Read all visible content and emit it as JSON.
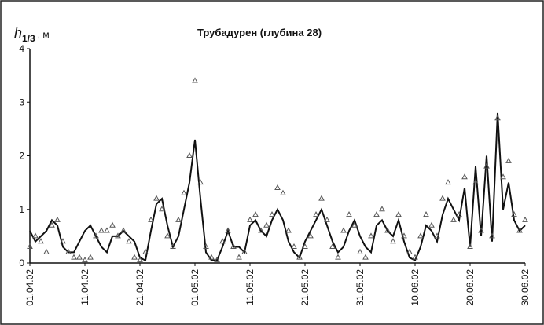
{
  "chart_data": {
    "type": "line",
    "title": "Трубадурен (глубина 28)",
    "y_label": {
      "main": "h",
      "sub": "1/3",
      "unit": ", м"
    },
    "x": [
      "01.04.02",
      "02.04.02",
      "03.04.02",
      "04.04.02",
      "05.04.02",
      "06.04.02",
      "07.04.02",
      "08.04.02",
      "09.04.02",
      "10.04.02",
      "11.04.02",
      "12.04.02",
      "13.04.02",
      "14.04.02",
      "15.04.02",
      "16.04.02",
      "17.04.02",
      "18.04.02",
      "19.04.02",
      "20.04.02",
      "21.04.02",
      "22.04.02",
      "23.04.02",
      "24.04.02",
      "25.04.02",
      "26.04.02",
      "27.04.02",
      "28.04.02",
      "29.04.02",
      "30.04.02",
      "01.05.02",
      "02.05.02",
      "03.05.02",
      "04.05.02",
      "05.05.02",
      "06.05.02",
      "07.05.02",
      "08.05.02",
      "09.05.02",
      "10.05.02",
      "11.05.02",
      "12.05.02",
      "13.05.02",
      "14.05.02",
      "15.05.02",
      "16.05.02",
      "17.05.02",
      "18.05.02",
      "19.05.02",
      "20.05.02",
      "21.05.02",
      "22.05.02",
      "23.05.02",
      "24.05.02",
      "25.05.02",
      "26.05.02",
      "27.05.02",
      "28.05.02",
      "29.05.02",
      "30.05.02",
      "31.05.02",
      "01.06.02",
      "02.06.02",
      "03.06.02",
      "04.06.02",
      "05.06.02",
      "06.06.02",
      "07.06.02",
      "08.06.02",
      "09.06.02",
      "10.06.02",
      "11.06.02",
      "12.06.02",
      "13.06.02",
      "14.06.02",
      "15.06.02",
      "16.06.02",
      "17.06.02",
      "18.06.02",
      "19.06.02",
      "20.06.02",
      "21.06.02",
      "22.06.02",
      "23.06.02",
      "24.06.02",
      "25.06.02",
      "26.06.02",
      "27.06.02",
      "28.06.02",
      "29.06.02",
      "30.06.02"
    ],
    "series": [
      {
        "color": "#111111",
        "style": "line",
        "values": [
          0.6,
          0.4,
          0.5,
          0.6,
          0.8,
          0.7,
          0.3,
          0.2,
          0.2,
          0.4,
          0.6,
          0.7,
          0.5,
          0.3,
          0.2,
          0.5,
          0.5,
          0.6,
          0.5,
          0.4,
          0.1,
          0.05,
          0.6,
          1.1,
          1.2,
          0.7,
          0.3,
          0.5,
          1.0,
          1.5,
          2.3,
          1.2,
          0.2,
          0.05,
          0.05,
          0.3,
          0.6,
          0.3,
          0.3,
          0.2,
          0.7,
          0.8,
          0.6,
          0.5,
          0.8,
          1.0,
          0.8,
          0.4,
          0.2,
          0.1,
          0.4,
          0.6,
          0.8,
          1.0,
          0.7,
          0.4,
          0.2,
          0.3,
          0.6,
          0.8,
          0.5,
          0.3,
          0.2,
          0.7,
          0.8,
          0.6,
          0.5,
          0.8,
          0.4,
          0.1,
          0.05,
          0.3,
          0.7,
          0.6,
          0.4,
          0.9,
          1.2,
          1.0,
          0.8,
          1.4,
          0.3,
          1.8,
          0.5,
          2.0,
          0.4,
          2.8,
          1.0,
          1.5,
          0.8,
          0.6,
          0.7
        ]
      },
      {
        "color": "#555555",
        "style": "triangle",
        "values": [
          0.3,
          0.5,
          0.4,
          0.2,
          0.7,
          0.8,
          0.4,
          0.2,
          0.1,
          0.1,
          0.05,
          0.1,
          0.5,
          0.6,
          0.6,
          0.7,
          0.5,
          0.6,
          0.4,
          0.1,
          0.05,
          0.2,
          0.8,
          1.2,
          1.0,
          0.5,
          0.3,
          0.8,
          1.3,
          2.0,
          3.4,
          1.5,
          0.3,
          0.1,
          0.05,
          0.4,
          0.6,
          0.3,
          0.1,
          0.2,
          0.8,
          0.9,
          0.6,
          0.7,
          0.9,
          1.4,
          1.3,
          0.6,
          0.3,
          0.1,
          0.3,
          0.5,
          0.9,
          1.2,
          0.8,
          0.3,
          0.1,
          0.6,
          0.9,
          0.7,
          0.2,
          0.1,
          0.5,
          0.9,
          1.0,
          0.6,
          0.4,
          0.9,
          0.5,
          0.2,
          0.1,
          0.5,
          0.9,
          0.7,
          0.5,
          1.2,
          1.5,
          0.8,
          0.9,
          1.6,
          0.3,
          1.5,
          0.6,
          1.8,
          0.5,
          2.7,
          1.6,
          1.9,
          0.9,
          0.6,
          0.8
        ]
      }
    ],
    "xlim": [
      "01.04.02",
      "30.06.02"
    ],
    "xticks": [
      "01.04.02",
      "11.04.02",
      "21.04.02",
      "01.05.02",
      "11.05.02",
      "21.05.02",
      "31.05.02",
      "10.06.02",
      "20.06.02",
      "30.06.02"
    ],
    "ylim": [
      0,
      4
    ],
    "yticks": [
      0,
      1,
      2,
      3,
      4
    ],
    "grid": false
  }
}
